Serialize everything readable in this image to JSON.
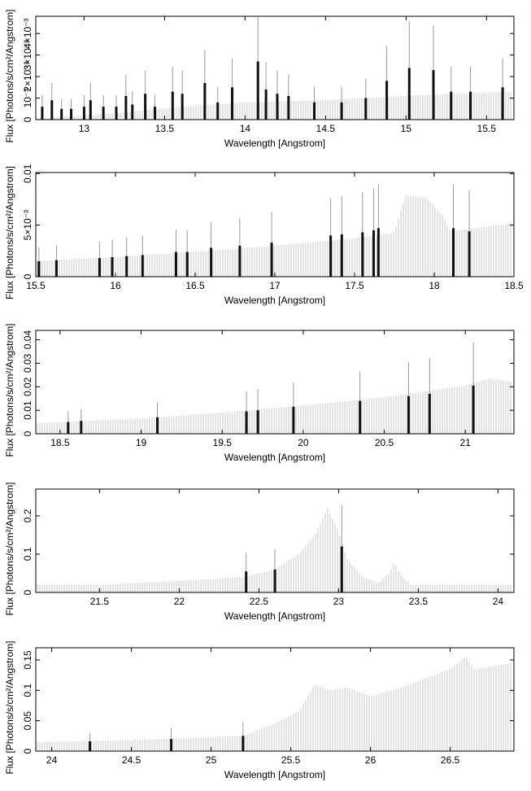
{
  "chart_data": [
    {
      "type": "bar",
      "xlabel": "Wavelength [Angstrom]",
      "ylabel": "Flux [Photons/s/cm²/Angstrom]",
      "xlim": [
        12.7,
        15.67
      ],
      "ylim": [
        0,
        0.0048
      ],
      "x_ticks": [
        {
          "v": 13,
          "label": "13"
        },
        {
          "v": 13.5,
          "label": "13.5"
        },
        {
          "v": 14,
          "label": "14"
        },
        {
          "v": 14.5,
          "label": "14.5"
        },
        {
          "v": 15,
          "label": "15"
        },
        {
          "v": 15.5,
          "label": "15.5"
        }
      ],
      "y_ticks": [
        {
          "v": 0,
          "label": "0"
        },
        {
          "v": 0.001,
          "label": "10⁻³"
        },
        {
          "v": 0.002,
          "label": "2×10⁻³"
        },
        {
          "v": 0.003,
          "label": "3×10⁻³"
        },
        {
          "v": 0.004,
          "label": "4×10⁻³"
        }
      ],
      "continuum": [
        [
          12.7,
          5e-05
        ],
        [
          13.2,
          0.0003
        ],
        [
          13.6,
          0.0006
        ],
        [
          14.0,
          0.0008
        ],
        [
          14.5,
          0.0009
        ],
        [
          15.0,
          0.0011
        ],
        [
          15.67,
          0.0013
        ]
      ],
      "lines": [
        {
          "x": 12.74,
          "y": 0.0006
        },
        {
          "x": 12.8,
          "y": 0.0009
        },
        {
          "x": 12.86,
          "y": 0.0005
        },
        {
          "x": 12.92,
          "y": 0.0005
        },
        {
          "x": 13.0,
          "y": 0.0006
        },
        {
          "x": 13.04,
          "y": 0.0009
        },
        {
          "x": 13.12,
          "y": 0.0006
        },
        {
          "x": 13.2,
          "y": 0.0006
        },
        {
          "x": 13.26,
          "y": 0.0011
        },
        {
          "x": 13.3,
          "y": 0.0007
        },
        {
          "x": 13.38,
          "y": 0.0012
        },
        {
          "x": 13.44,
          "y": 0.0006
        },
        {
          "x": 13.55,
          "y": 0.0013
        },
        {
          "x": 13.61,
          "y": 0.0012
        },
        {
          "x": 13.75,
          "y": 0.0017
        },
        {
          "x": 13.83,
          "y": 0.0008
        },
        {
          "x": 13.92,
          "y": 0.0015
        },
        {
          "x": 14.08,
          "y": 0.0027
        },
        {
          "x": 14.13,
          "y": 0.0014
        },
        {
          "x": 14.2,
          "y": 0.0012
        },
        {
          "x": 14.27,
          "y": 0.0011
        },
        {
          "x": 14.43,
          "y": 0.0008
        },
        {
          "x": 14.6,
          "y": 0.0008
        },
        {
          "x": 14.75,
          "y": 0.001
        },
        {
          "x": 14.88,
          "y": 0.0018
        },
        {
          "x": 15.02,
          "y": 0.0024
        },
        {
          "x": 15.17,
          "y": 0.0023
        },
        {
          "x": 15.28,
          "y": 0.0013
        },
        {
          "x": 15.4,
          "y": 0.0013
        },
        {
          "x": 15.6,
          "y": 0.0015
        }
      ]
    },
    {
      "type": "bar",
      "xlabel": "Wavelength [Angstrom]",
      "ylabel": "Flux [Photons/s/cm²/Angstrom]",
      "xlim": [
        15.5,
        18.5
      ],
      "ylim": [
        0,
        0.0101
      ],
      "x_ticks": [
        {
          "v": 15.5,
          "label": "15.5"
        },
        {
          "v": 16,
          "label": "16"
        },
        {
          "v": 16.5,
          "label": "16.5"
        },
        {
          "v": 17,
          "label": "17"
        },
        {
          "v": 17.5,
          "label": "17.5"
        },
        {
          "v": 18,
          "label": "18"
        },
        {
          "v": 18.5,
          "label": "18.5"
        }
      ],
      "y_ticks": [
        {
          "v": 0,
          "label": "0"
        },
        {
          "v": 0.005,
          "label": "5×10⁻³"
        },
        {
          "v": 0.01,
          "label": "0.01"
        }
      ],
      "continuum": [
        [
          15.5,
          0.0015
        ],
        [
          16.0,
          0.0019
        ],
        [
          16.5,
          0.0024
        ],
        [
          17.0,
          0.003
        ],
        [
          17.5,
          0.0037
        ],
        [
          17.75,
          0.0043
        ],
        [
          17.82,
          0.0079
        ],
        [
          17.95,
          0.0076
        ],
        [
          18.05,
          0.006
        ],
        [
          18.1,
          0.0044
        ],
        [
          18.5,
          0.0052
        ]
      ],
      "lines": [
        {
          "x": 15.52,
          "y": 0.0015
        },
        {
          "x": 15.63,
          "y": 0.0016
        },
        {
          "x": 15.9,
          "y": 0.0018
        },
        {
          "x": 15.98,
          "y": 0.0019
        },
        {
          "x": 16.07,
          "y": 0.002
        },
        {
          "x": 16.17,
          "y": 0.0021
        },
        {
          "x": 16.38,
          "y": 0.0024
        },
        {
          "x": 16.45,
          "y": 0.0024
        },
        {
          "x": 16.6,
          "y": 0.0028
        },
        {
          "x": 16.78,
          "y": 0.003
        },
        {
          "x": 16.98,
          "y": 0.0033
        },
        {
          "x": 17.35,
          "y": 0.004
        },
        {
          "x": 17.42,
          "y": 0.0041
        },
        {
          "x": 17.55,
          "y": 0.0043
        },
        {
          "x": 17.62,
          "y": 0.0045
        },
        {
          "x": 17.65,
          "y": 0.0047
        },
        {
          "x": 18.12,
          "y": 0.0047
        },
        {
          "x": 18.22,
          "y": 0.0044
        }
      ]
    },
    {
      "type": "bar",
      "xlabel": "Wavelength [Angstrom]",
      "ylabel": "Flux [Photons/s/cm²/Angstrom]",
      "xlim": [
        18.35,
        21.3
      ],
      "ylim": [
        0,
        0.044
      ],
      "x_ticks": [
        {
          "v": 18.5,
          "label": "18.5"
        },
        {
          "v": 19,
          "label": "19"
        },
        {
          "v": 19.5,
          "label": "19.5"
        },
        {
          "v": 20,
          "label": "20"
        },
        {
          "v": 20.5,
          "label": "20.5"
        },
        {
          "v": 21,
          "label": "21"
        }
      ],
      "y_ticks": [
        {
          "v": 0,
          "label": "0"
        },
        {
          "v": 0.01,
          "label": "0.01"
        },
        {
          "v": 0.02,
          "label": "0.02"
        },
        {
          "v": 0.03,
          "label": "0.03"
        },
        {
          "v": 0.04,
          "label": "0.04"
        }
      ],
      "continuum": [
        [
          18.35,
          0.0045
        ],
        [
          19.0,
          0.0065
        ],
        [
          19.5,
          0.009
        ],
        [
          20.0,
          0.012
        ],
        [
          20.5,
          0.0155
        ],
        [
          21.0,
          0.0205
        ],
        [
          21.15,
          0.0235
        ],
        [
          21.3,
          0.022
        ]
      ],
      "lines": [
        {
          "x": 18.55,
          "y": 0.005
        },
        {
          "x": 18.63,
          "y": 0.0055
        },
        {
          "x": 19.1,
          "y": 0.007
        },
        {
          "x": 19.65,
          "y": 0.0095
        },
        {
          "x": 19.72,
          "y": 0.01
        },
        {
          "x": 19.94,
          "y": 0.0115
        },
        {
          "x": 20.35,
          "y": 0.014
        },
        {
          "x": 20.65,
          "y": 0.016
        },
        {
          "x": 20.78,
          "y": 0.017
        },
        {
          "x": 21.05,
          "y": 0.0205
        }
      ]
    },
    {
      "type": "bar",
      "xlabel": "Wavelength [Angstrom]",
      "ylabel": "Flux [Photons/s/cm²/Angstrom]",
      "xlim": [
        21.1,
        24.1
      ],
      "ylim": [
        0,
        0.27
      ],
      "x_ticks": [
        {
          "v": 21.5,
          "label": "21.5"
        },
        {
          "v": 22,
          "label": "22"
        },
        {
          "v": 22.5,
          "label": "22.5"
        },
        {
          "v": 23,
          "label": "23"
        },
        {
          "v": 23.5,
          "label": "23.5"
        },
        {
          "v": 24,
          "label": "24"
        }
      ],
      "y_ticks": [
        {
          "v": 0,
          "label": "0"
        },
        {
          "v": 0.1,
          "label": "0.1"
        },
        {
          "v": 0.2,
          "label": "0.2"
        }
      ],
      "continuum": [
        [
          21.1,
          0.02
        ],
        [
          21.5,
          0.02
        ],
        [
          22.0,
          0.03
        ],
        [
          22.4,
          0.04
        ],
        [
          22.6,
          0.06
        ],
        [
          22.75,
          0.1
        ],
        [
          22.85,
          0.15
        ],
        [
          22.93,
          0.22
        ],
        [
          23.0,
          0.16
        ],
        [
          23.05,
          0.09
        ],
        [
          23.15,
          0.04
        ],
        [
          23.25,
          0.025
        ],
        [
          23.32,
          0.05
        ],
        [
          23.35,
          0.08
        ],
        [
          23.38,
          0.05
        ],
        [
          23.45,
          0.02
        ],
        [
          24.1,
          0.02
        ]
      ],
      "lines": [
        {
          "x": 22.42,
          "y": 0.055
        },
        {
          "x": 22.6,
          "y": 0.06
        },
        {
          "x": 23.02,
          "y": 0.12
        }
      ]
    },
    {
      "type": "bar",
      "xlabel": "Wavelength [Angstrom]",
      "ylabel": "Flux [Photons/s/cm²/Angstrom]",
      "xlim": [
        23.9,
        26.9
      ],
      "ylim": [
        0,
        0.17
      ],
      "x_ticks": [
        {
          "v": 24,
          "label": "24"
        },
        {
          "v": 24.5,
          "label": "24.5"
        },
        {
          "v": 25,
          "label": "25"
        },
        {
          "v": 25.5,
          "label": "25.5"
        },
        {
          "v": 26,
          "label": "26"
        },
        {
          "v": 26.5,
          "label": "26.5"
        }
      ],
      "y_ticks": [
        {
          "v": 0,
          "label": "0"
        },
        {
          "v": 0.05,
          "label": "0.05"
        },
        {
          "v": 0.1,
          "label": "0.1"
        },
        {
          "v": 0.15,
          "label": "0.15"
        }
      ],
      "continuum": [
        [
          23.9,
          0.015
        ],
        [
          24.5,
          0.018
        ],
        [
          25.2,
          0.025
        ],
        [
          25.4,
          0.045
        ],
        [
          25.55,
          0.065
        ],
        [
          25.65,
          0.11
        ],
        [
          25.75,
          0.1
        ],
        [
          25.85,
          0.105
        ],
        [
          26.0,
          0.09
        ],
        [
          26.2,
          0.105
        ],
        [
          26.4,
          0.125
        ],
        [
          26.5,
          0.135
        ],
        [
          26.6,
          0.155
        ],
        [
          26.65,
          0.135
        ],
        [
          26.9,
          0.145
        ]
      ],
      "lines": [
        {
          "x": 24.24,
          "y": 0.016
        },
        {
          "x": 24.75,
          "y": 0.02
        },
        {
          "x": 25.2,
          "y": 0.025
        }
      ]
    }
  ]
}
